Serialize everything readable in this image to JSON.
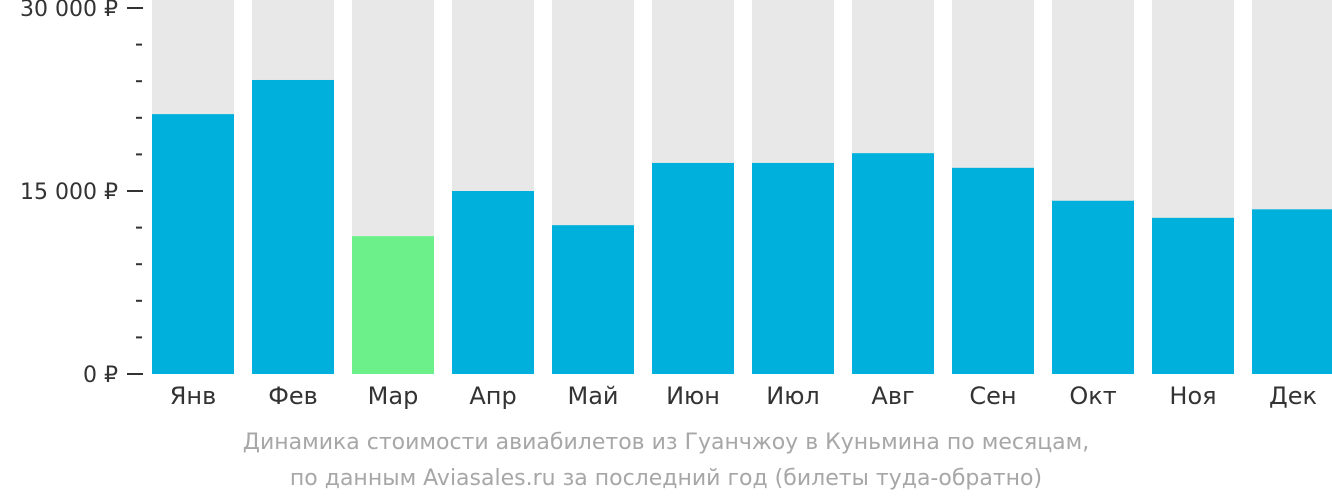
{
  "chart_data": {
    "type": "bar",
    "categories": [
      "Янв",
      "Фев",
      "Мар",
      "Апр",
      "Май",
      "Июн",
      "Июл",
      "Авг",
      "Сен",
      "Окт",
      "Ноя",
      "Дек"
    ],
    "values": [
      21300,
      24100,
      11300,
      15000,
      12200,
      17300,
      17300,
      18100,
      16900,
      14200,
      12800,
      13500
    ],
    "highlight_index": 2,
    "ylim": [
      0,
      30000
    ],
    "yticks": [
      {
        "value": 0,
        "label": "0 ₽"
      },
      {
        "value": 15000,
        "label": "15 000 ₽"
      },
      {
        "value": 30000,
        "label": "30 000 ₽"
      }
    ],
    "minor_ticks": [
      3000,
      6000,
      9000,
      12000,
      18000,
      21000,
      24000,
      27000
    ],
    "grid": false,
    "colors": {
      "bar": "#00b0dc",
      "highlight": "#6cf08a",
      "background_bar": "#e8e8e8",
      "axis": "#333333"
    }
  },
  "caption": {
    "line1": "Динамика стоимости авиабилетов из Гуанчжоу в Куньмина по месяцам,",
    "line2": "по данным Aviasales.ru за последний год (билеты туда-обратно)"
  }
}
